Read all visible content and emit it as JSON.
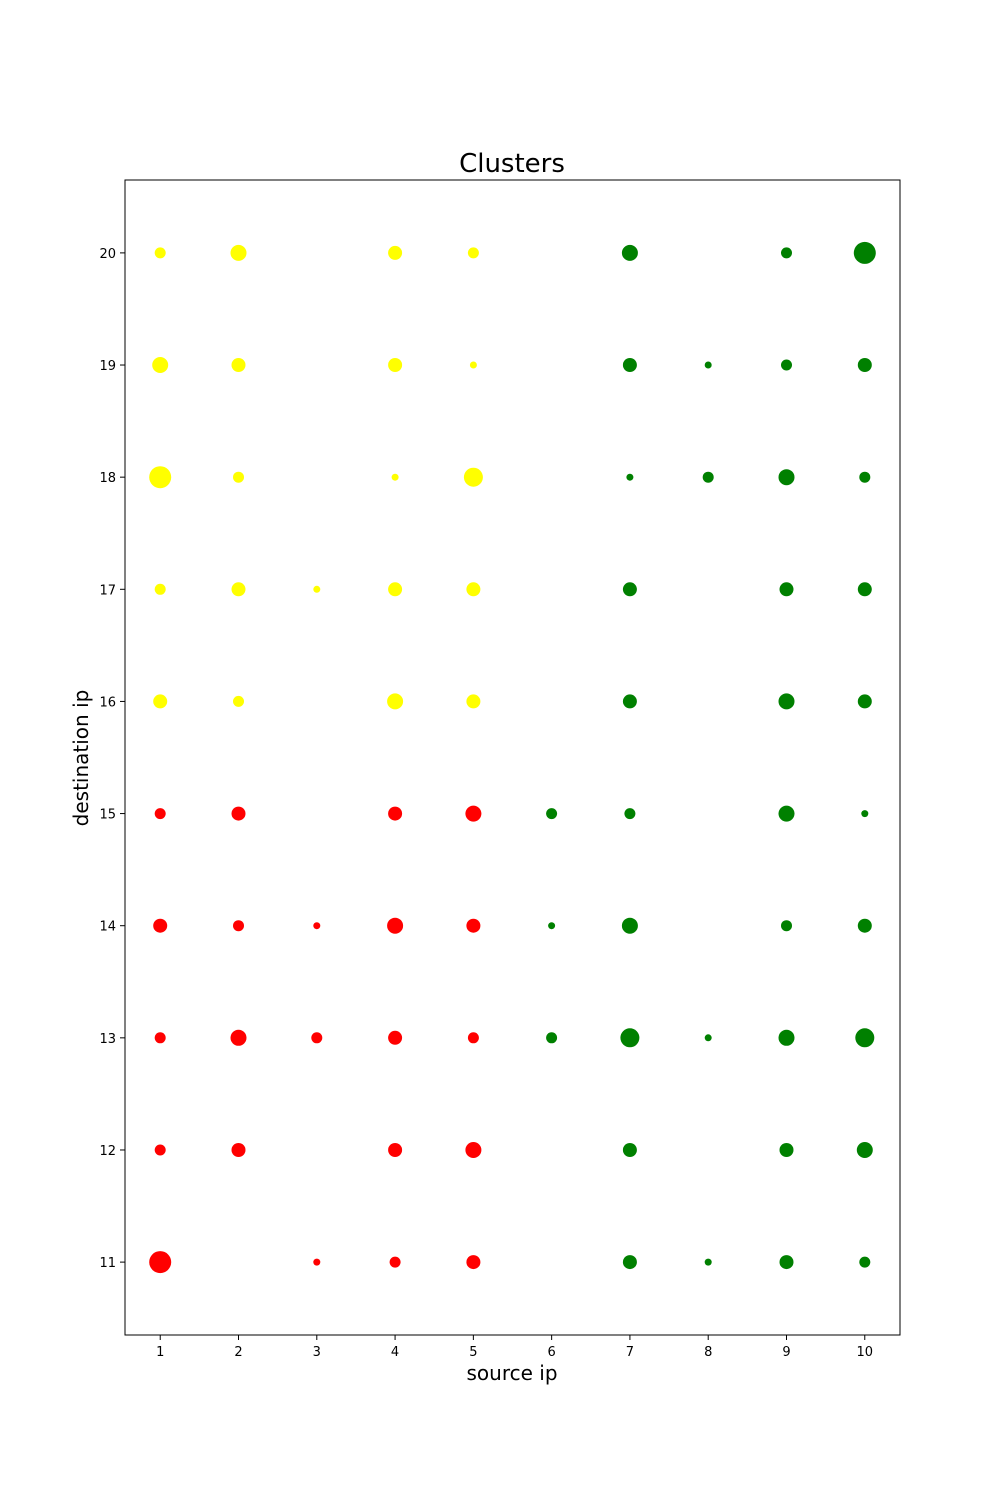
{
  "chart_data": {
    "type": "scatter",
    "title": "Clusters",
    "xlabel": "source ip",
    "ylabel": "destination ip",
    "xlim": [
      0.55,
      10.45
    ],
    "ylim": [
      10.35,
      20.65
    ],
    "xticks": [
      1,
      2,
      3,
      4,
      5,
      6,
      7,
      8,
      9,
      10
    ],
    "yticks": [
      11,
      12,
      13,
      14,
      15,
      16,
      17,
      18,
      19,
      20
    ],
    "grid": false,
    "legend": "none",
    "size_note": "marker area varies per point (relative size 1-6)",
    "clusters": [
      {
        "color": "#ffff00",
        "points": [
          [
            1,
            20,
            2
          ],
          [
            2,
            20,
            4
          ],
          [
            4,
            20,
            3
          ],
          [
            5,
            20,
            2
          ],
          [
            1,
            19,
            4
          ],
          [
            2,
            19,
            3
          ],
          [
            4,
            19,
            3
          ],
          [
            5,
            19,
            1
          ],
          [
            1,
            18,
            6
          ],
          [
            2,
            18,
            2
          ],
          [
            4,
            18,
            1
          ],
          [
            5,
            18,
            5
          ],
          [
            1,
            17,
            2
          ],
          [
            2,
            17,
            3
          ],
          [
            3,
            17,
            1
          ],
          [
            4,
            17,
            3
          ],
          [
            5,
            17,
            3
          ],
          [
            1,
            16,
            3
          ],
          [
            2,
            16,
            2
          ],
          [
            4,
            16,
            4
          ],
          [
            5,
            16,
            3
          ]
        ]
      },
      {
        "color": "#ff0000",
        "points": [
          [
            1,
            15,
            2
          ],
          [
            2,
            15,
            3
          ],
          [
            4,
            15,
            3
          ],
          [
            5,
            15,
            4
          ],
          [
            1,
            14,
            3
          ],
          [
            2,
            14,
            2
          ],
          [
            3,
            14,
            1
          ],
          [
            4,
            14,
            4
          ],
          [
            5,
            14,
            3
          ],
          [
            1,
            13,
            2
          ],
          [
            2,
            13,
            4
          ],
          [
            3,
            13,
            2
          ],
          [
            4,
            13,
            3
          ],
          [
            5,
            13,
            2
          ],
          [
            1,
            12,
            2
          ],
          [
            2,
            12,
            3
          ],
          [
            4,
            12,
            3
          ],
          [
            5,
            12,
            4
          ],
          [
            1,
            11,
            6
          ],
          [
            3,
            11,
            1
          ],
          [
            4,
            11,
            2
          ],
          [
            5,
            11,
            3
          ]
        ]
      },
      {
        "color": "#008000",
        "points": [
          [
            7,
            20,
            4
          ],
          [
            9,
            20,
            2
          ],
          [
            10,
            20,
            6
          ],
          [
            7,
            19,
            3
          ],
          [
            8,
            19,
            1
          ],
          [
            9,
            19,
            2
          ],
          [
            10,
            19,
            3
          ],
          [
            7,
            18,
            1
          ],
          [
            8,
            18,
            2
          ],
          [
            9,
            18,
            4
          ],
          [
            10,
            18,
            2
          ],
          [
            7,
            17,
            3
          ],
          [
            9,
            17,
            3
          ],
          [
            10,
            17,
            3
          ],
          [
            7,
            16,
            3
          ],
          [
            9,
            16,
            4
          ],
          [
            10,
            16,
            3
          ],
          [
            6,
            15,
            2
          ],
          [
            7,
            15,
            2
          ],
          [
            9,
            15,
            4
          ],
          [
            10,
            15,
            1
          ],
          [
            6,
            14,
            1
          ],
          [
            7,
            14,
            4
          ],
          [
            9,
            14,
            2
          ],
          [
            10,
            14,
            3
          ],
          [
            6,
            13,
            2
          ],
          [
            7,
            13,
            5
          ],
          [
            8,
            13,
            1
          ],
          [
            9,
            13,
            4
          ],
          [
            10,
            13,
            5
          ],
          [
            7,
            12,
            3
          ],
          [
            9,
            12,
            3
          ],
          [
            10,
            12,
            4
          ],
          [
            7,
            11,
            3
          ],
          [
            8,
            11,
            1
          ],
          [
            9,
            11,
            3
          ],
          [
            10,
            11,
            2
          ]
        ]
      }
    ]
  }
}
